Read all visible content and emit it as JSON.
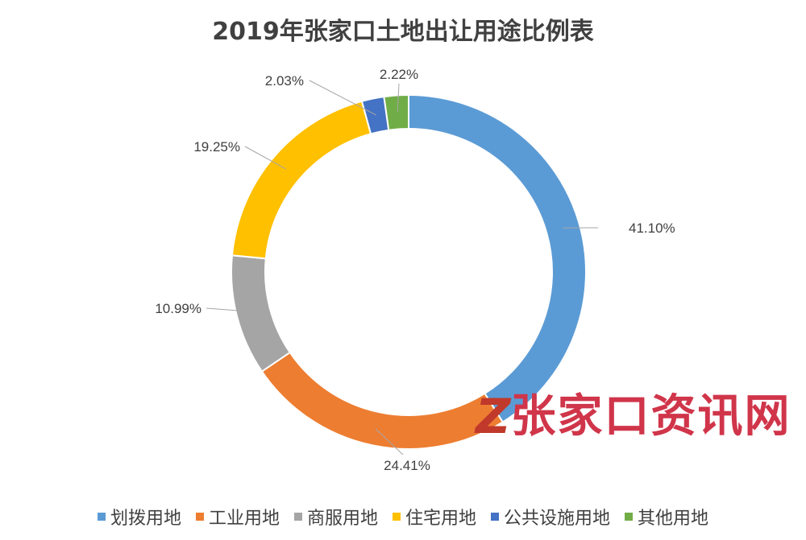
{
  "chart_data": {
    "type": "pie",
    "variant": "donut",
    "title": "2019年张家口土地出让用途比例表",
    "categories": [
      "划拨用地",
      "工业用地",
      "商服用地",
      "住宅用地",
      "公共设施用地",
      "其他用地"
    ],
    "values": [
      41.1,
      24.41,
      10.99,
      19.25,
      2.03,
      2.22
    ],
    "labels": [
      "41.10%",
      "24.41%",
      "10.99%",
      "19.25%",
      "2.03%",
      "2.22%"
    ],
    "colors": [
      "#5b9bd5",
      "#ed7d31",
      "#a5a5a5",
      "#ffc000",
      "#4472c4",
      "#70ad47"
    ],
    "legend_position": "bottom"
  },
  "watermark": {
    "logo_letter": "Z",
    "text": "张家口资讯网"
  }
}
